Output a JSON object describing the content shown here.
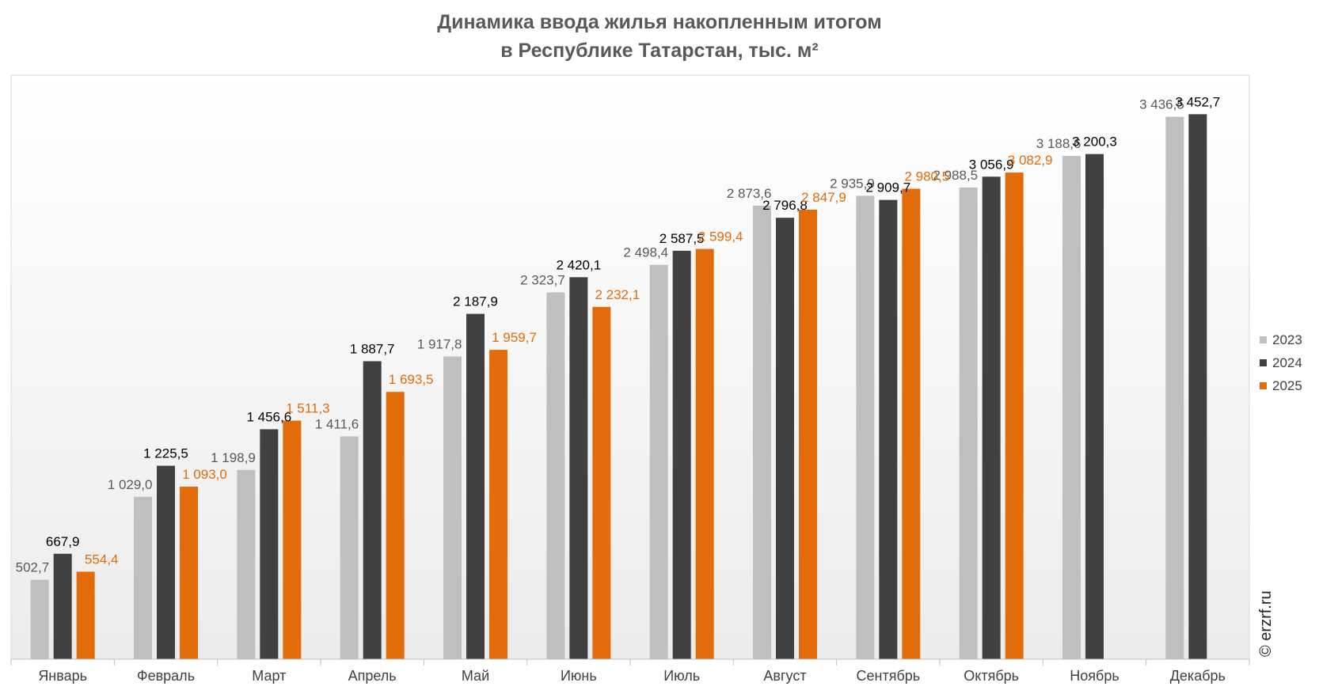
{
  "chart_data": {
    "type": "bar",
    "title_line1": "Динамика ввода жилья накопленным итогом",
    "title_line2": "в Республике Татарстан, тыс. м²",
    "categories": [
      "Январь",
      "Февраль",
      "Март",
      "Апрель",
      "Май",
      "Июнь",
      "Июль",
      "Август",
      "Сентябрь",
      "Октябрь",
      "Ноябрь",
      "Декабрь"
    ],
    "series": [
      {
        "name": "2023",
        "color": "#bfbfbf",
        "label_color": "#595959",
        "values": [
          502.7,
          1029.0,
          1198.9,
          1411.6,
          1917.8,
          2323.7,
          2498.4,
          2873.6,
          2935.9,
          2988.5,
          3188.6,
          3436.5
        ],
        "labels": [
          "502,7",
          "1 029,0",
          "1 198,9",
          "1 411,6",
          "1 917,8",
          "2 323,7",
          "2 498,4",
          "2 873,6",
          "2 935,9",
          "2 988,5",
          "3 188,6",
          "3 436,5"
        ]
      },
      {
        "name": "2024",
        "color": "#404040",
        "label_color": "#000000",
        "values": [
          667.9,
          1225.5,
          1456.6,
          1887.7,
          2187.9,
          2420.1,
          2587.5,
          2796.8,
          2909.7,
          3056.9,
          3200.3,
          3452.7
        ],
        "labels": [
          "667,9",
          "1 225,5",
          "1 456,6",
          "1 887,7",
          "2 187,9",
          "2 420,1",
          "2 587,5",
          "2 796,8",
          "2 909,7",
          "3 056,9",
          "3 200,3",
          "3 452,7"
        ]
      },
      {
        "name": "2025",
        "color": "#e36c0a",
        "label_color": "#e36c0a",
        "values": [
          554.4,
          1093.0,
          1511.3,
          1693.5,
          1959.7,
          2232.1,
          2599.4,
          2847.9,
          2980.5,
          3082.9,
          null,
          null
        ],
        "labels": [
          "554,4",
          "1 093,0",
          "1 511,3",
          "1 693,5",
          "1 959,7",
          "2 232,1",
          "2 599,4",
          "2 847,9",
          "2 980,5",
          "3 082,9",
          "",
          ""
        ]
      }
    ],
    "ylim": [
      0,
      3700
    ],
    "grid": false,
    "legend_position": "right",
    "watermark": "© erzrf.ru"
  }
}
